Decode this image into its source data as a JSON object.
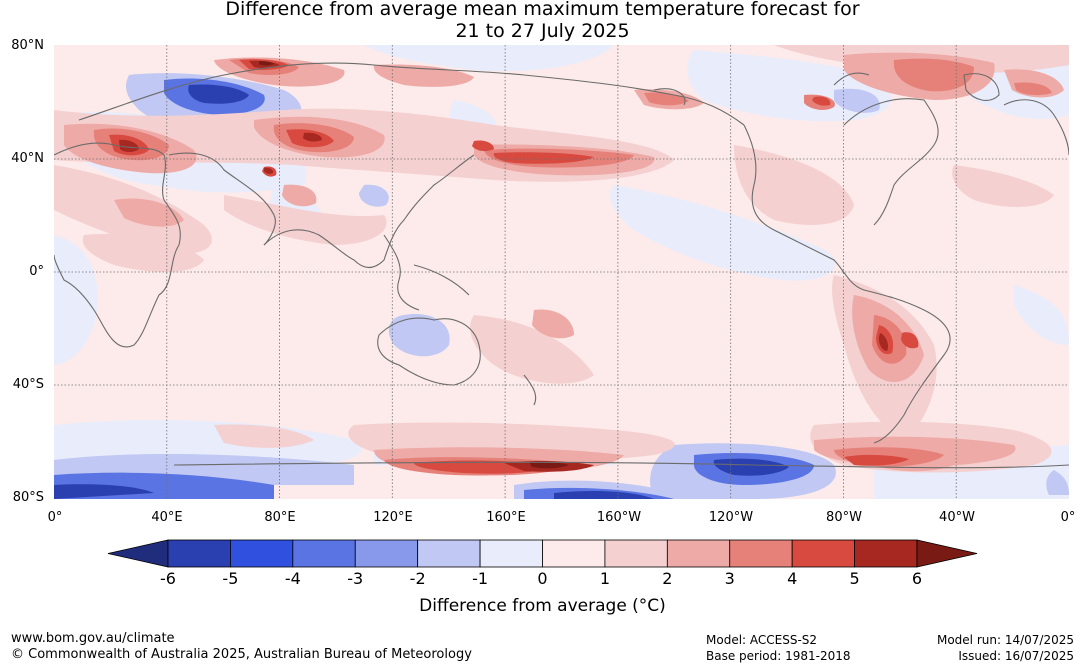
{
  "title": {
    "line1": "Difference from average mean maximum temperature forecast for",
    "line2": "21 to 27 July 2025"
  },
  "map": {
    "lat_labels": [
      "80°N",
      "40°N",
      "0°",
      "40°S",
      "80°S"
    ],
    "lon_labels": [
      "0°",
      "40°E",
      "80°E",
      "120°E",
      "160°E",
      "160°W",
      "120°W",
      "80°W",
      "40°W",
      "0°"
    ]
  },
  "colorbar": {
    "title": "Difference from average (°C)",
    "ticks": [
      "-6",
      "-5",
      "-4",
      "-3",
      "-2",
      "-1",
      "0",
      "1",
      "2",
      "3",
      "4",
      "5",
      "6"
    ],
    "colors": [
      "#1f2d7c",
      "#2a3fb0",
      "#3050e0",
      "#5a74e3",
      "#8898ea",
      "#c0c8f3",
      "#e8ecfb",
      "#fcebea",
      "#f5d0d0",
      "#eeaaa6",
      "#e6817a",
      "#d84a40",
      "#a62820",
      "#7a1a14"
    ]
  },
  "footer": {
    "url": "www.bom.gov.au/climate",
    "copyright": "© Commonwealth of Australia 2025, Australian Bureau of Meteorology",
    "model": "Model: ACCESS-S2",
    "base_period": "Base period: 1981-2018",
    "model_run": "Model run: 14/07/2025",
    "issued": "Issued: 16/07/2025"
  }
}
